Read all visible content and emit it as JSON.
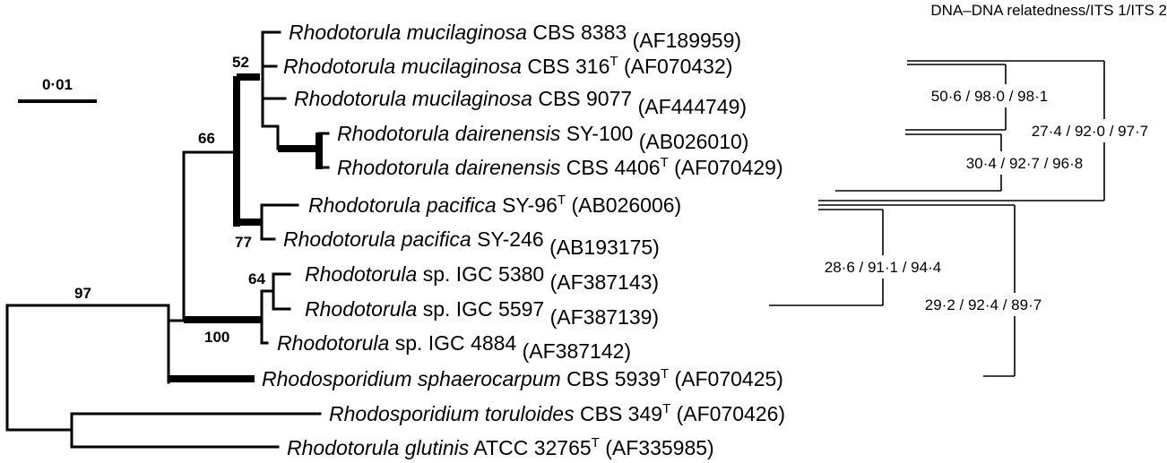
{
  "header": "DNA–DNA relatedness/ITS 1/ITS 2",
  "scale_bar": {
    "label": "0·01"
  },
  "taxa": [
    {
      "genus": "Rhodotorula mucilaginosa",
      "strain": "CBS 8383",
      "type": "",
      "accession": "(AF189959)"
    },
    {
      "genus": "Rhodotorula mucilaginosa",
      "strain": "CBS 316",
      "type": "T",
      "accession": "(AF070432)"
    },
    {
      "genus": "Rhodotorula mucilaginosa",
      "strain": "CBS 9077",
      "type": "",
      "accession": "(AF444749)"
    },
    {
      "genus": "Rhodotorula dairenensis",
      "strain": "SY-100",
      "type": "",
      "accession": "(AB026010)"
    },
    {
      "genus": "Rhodotorula dairenensis",
      "strain": "CBS 4406",
      "type": "T",
      "accession": "(AF070429)"
    },
    {
      "genus": "Rhodotorula pacifica",
      "strain": "SY-96",
      "type": "T",
      "accession": "(AB026006)"
    },
    {
      "genus": "Rhodotorula pacifica",
      "strain": "SY-246",
      "type": "",
      "accession": "(AB193175)"
    },
    {
      "genus": "Rhodotorula",
      "strain": "sp. IGC 5380",
      "type": "",
      "accession": "(AF387143)"
    },
    {
      "genus": "Rhodotorula",
      "strain": "sp. IGC 5597",
      "type": "",
      "accession": "(AF387139)"
    },
    {
      "genus": "Rhodotorula",
      "strain": "sp. IGC 4884",
      "type": "",
      "accession": "(AF387142)"
    },
    {
      "genus": "Rhodosporidium sphaerocarpum",
      "strain": "CBS 5939",
      "type": "T",
      "accession": "(AF070425)"
    },
    {
      "genus": "Rhodosporidium toruloides",
      "strain": " CBS 349",
      "type": "T",
      "accession": "(AF070426)"
    },
    {
      "genus": "Rhodotorula glutinis",
      "strain": " ATCC 32765",
      "type": "T",
      "accession": "(AF335985)"
    }
  ],
  "bootstrap": [
    "52",
    "66",
    "77",
    "64",
    "97",
    "100"
  ],
  "relatedness": [
    "50·6 / 98·0 / 98·1",
    "27·4 / 92·0 / 97·7",
    "30·4 / 92·7 / 96·8",
    "28·6 / 91·1 / 94·4",
    "29·2 / 92·4 / 89·7"
  ]
}
